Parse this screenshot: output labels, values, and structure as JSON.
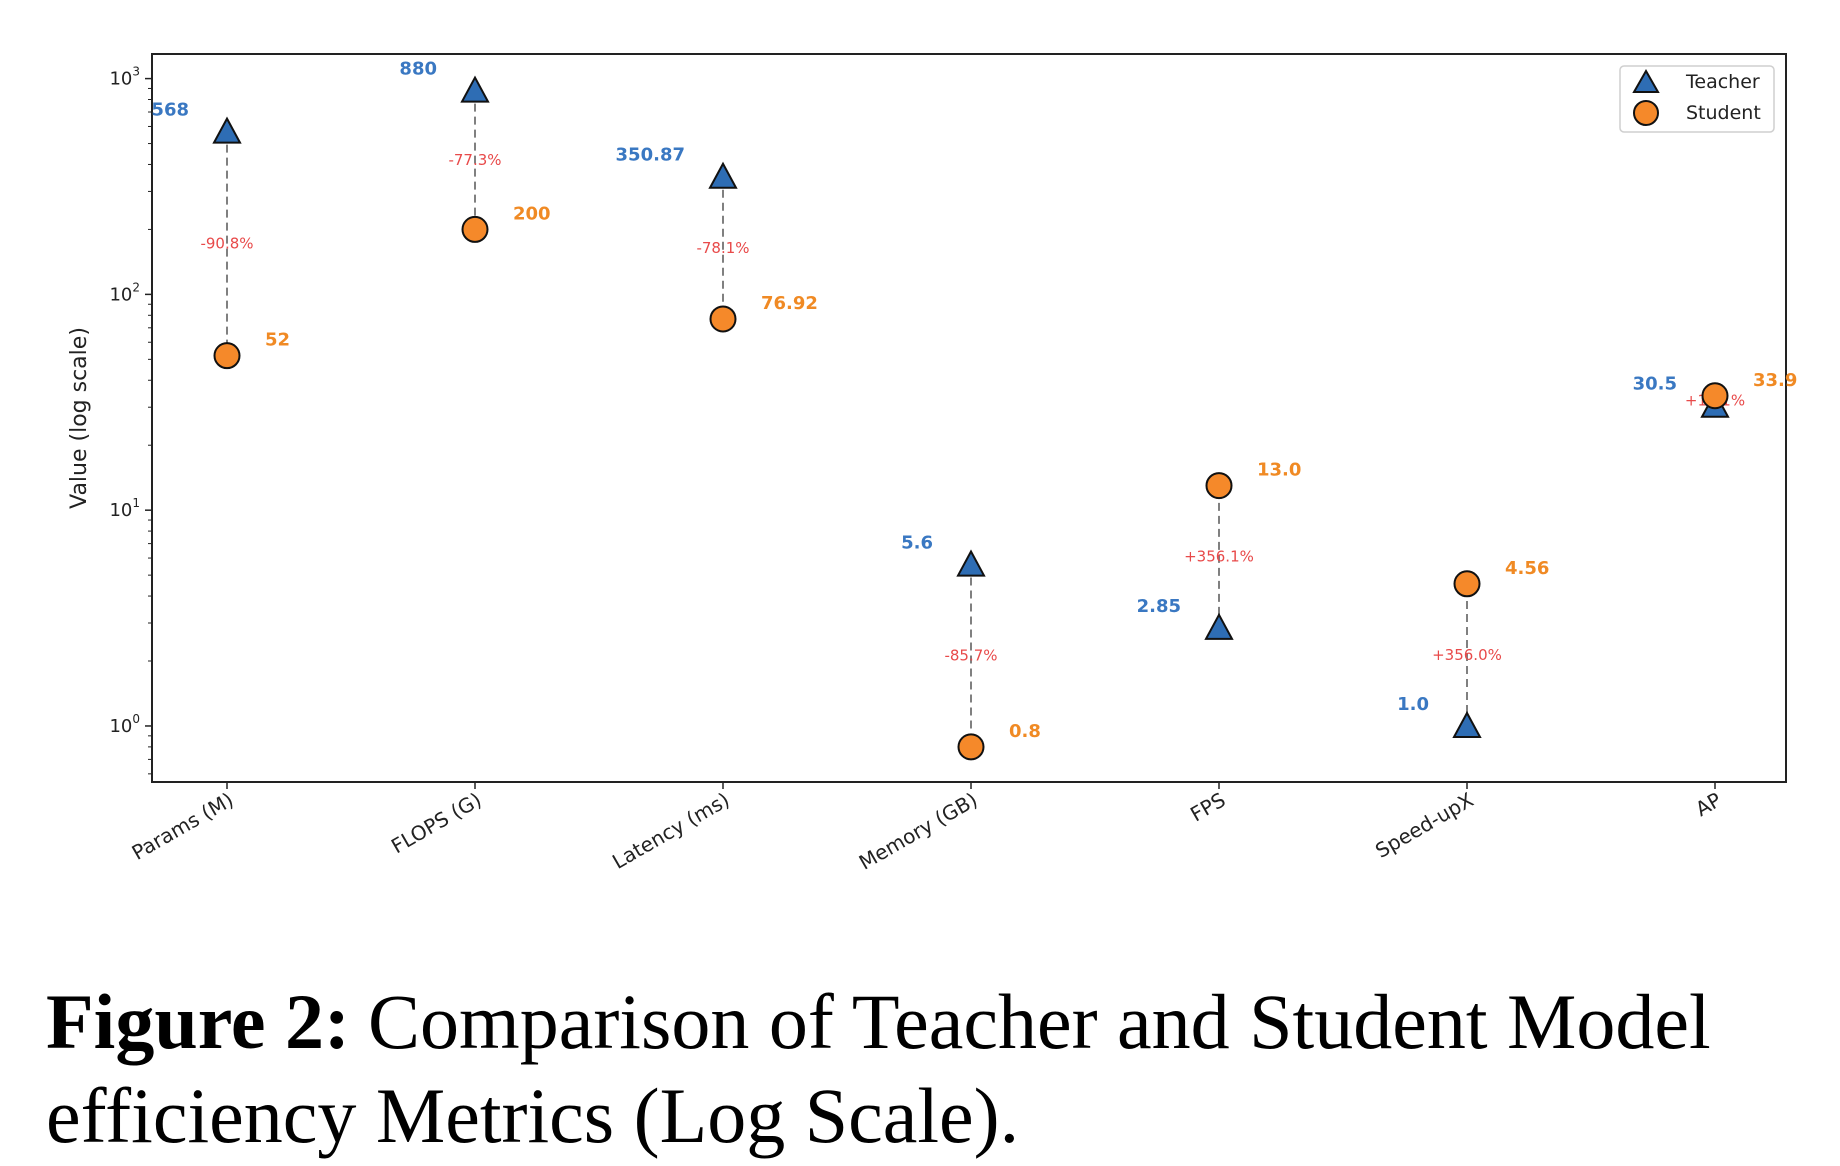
{
  "chart_data": {
    "type": "scatter",
    "categories": [
      "Params (M)",
      "FLOPS (G)",
      "Latency (ms)",
      "Memory (GB)",
      "FPS",
      "Speed-upX",
      "AP"
    ],
    "ylabel": "Value (log scale)",
    "yscale": "log",
    "ylim": [
      0.55,
      1300
    ],
    "yticks": [
      {
        "value": 1,
        "base": "10",
        "exp": "0"
      },
      {
        "value": 10,
        "base": "10",
        "exp": "1"
      },
      {
        "value": 100,
        "base": "10",
        "exp": "2"
      },
      {
        "value": 1000,
        "base": "10",
        "exp": "3"
      }
    ],
    "legend_position": "top-right",
    "series": [
      {
        "name": "Teacher",
        "marker": "triangle",
        "color": "#2e6db4",
        "values": [
          568,
          880,
          350.87,
          5.6,
          2.85,
          1.0,
          30.5
        ],
        "labels": [
          "568",
          "880",
          "350.87",
          "5.6",
          "2.85",
          "1.0",
          "30.5"
        ]
      },
      {
        "name": "Student",
        "marker": "circle",
        "color": "#f5892a",
        "values": [
          52,
          200,
          76.92,
          0.8,
          13.0,
          4.56,
          33.9
        ],
        "labels": [
          "52",
          "200",
          "76.92",
          "0.8",
          "13.0",
          "4.56",
          "33.9"
        ]
      }
    ],
    "changes": [
      "-90.8%",
      "-77.3%",
      "-78.1%",
      "-85.7%",
      "+356.1%",
      "+356.0%",
      "+11.1%"
    ],
    "colors": {
      "teacher_label": "#3a78c2",
      "student_label": "#f08a24",
      "change": "#e84a4a",
      "connector": "#808080"
    }
  },
  "caption": {
    "label": "Figure 2:",
    "text": "Comparison of Teacher and Student Model efficiency Metrics (Log Scale)."
  }
}
